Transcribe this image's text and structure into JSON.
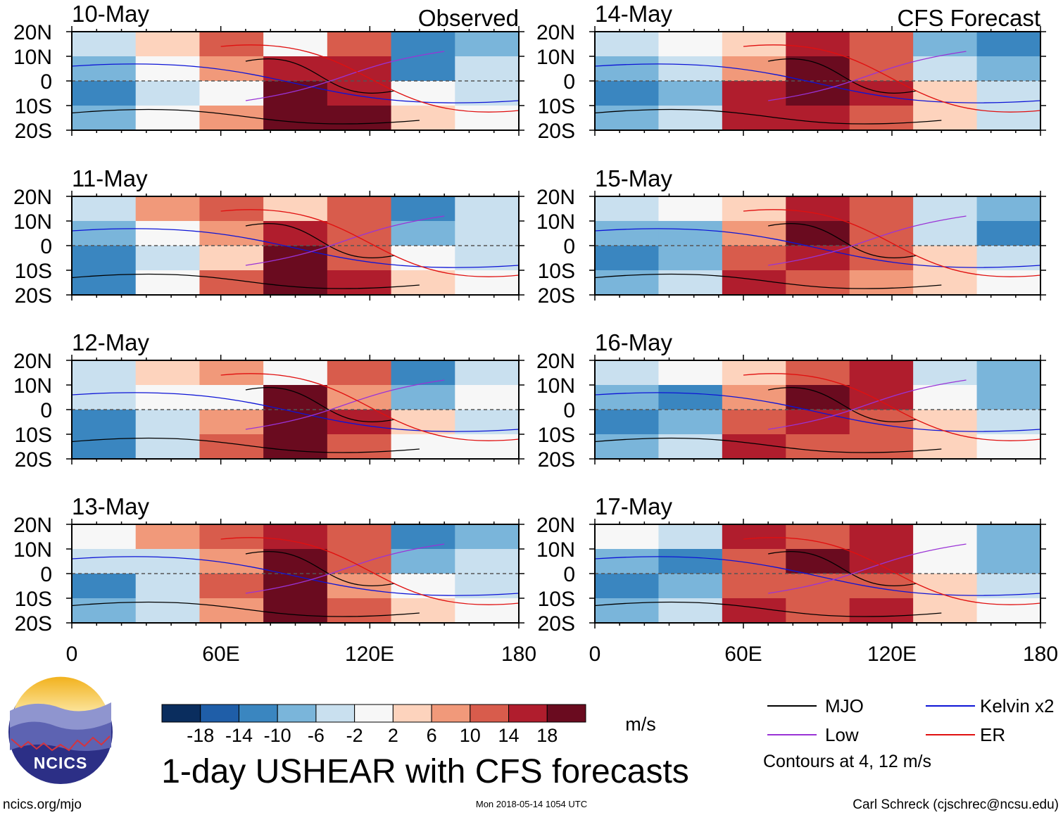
{
  "header": {
    "observed_label": "Observed",
    "forecast_label": "CFS Forecast"
  },
  "chart_data": {
    "type": "heatmap",
    "title": "1-day USHEAR with CFS forecasts",
    "x_ticks": [
      "0",
      "60E",
      "120E",
      "180"
    ],
    "x_tick_values": [
      0,
      60,
      120,
      180
    ],
    "y_ticks": [
      "20N",
      "10N",
      "0",
      "10S",
      "20S"
    ],
    "y_tick_values": [
      20,
      10,
      0,
      -10,
      -20
    ],
    "xlim": [
      0,
      180
    ],
    "ylim": [
      -20,
      20
    ],
    "panels": [
      {
        "date": "10-May",
        "type": "Observed",
        "field": [
          [
            -6,
            4,
            10,
            -2,
            10,
            -14,
            -10
          ],
          [
            -10,
            -2,
            6,
            14,
            14,
            -14,
            -6
          ],
          [
            -14,
            -6,
            -2,
            18,
            14,
            -2,
            -6
          ],
          [
            -10,
            -2,
            6,
            18,
            18,
            2,
            -2
          ]
        ]
      },
      {
        "date": "11-May",
        "type": "Observed",
        "field": [
          [
            -6,
            6,
            10,
            2,
            10,
            -14,
            -6
          ],
          [
            -10,
            -2,
            6,
            14,
            10,
            -10,
            -6
          ],
          [
            -14,
            -6,
            2,
            18,
            10,
            -2,
            -6
          ],
          [
            -14,
            -2,
            10,
            18,
            14,
            2,
            -2
          ]
        ]
      },
      {
        "date": "12-May",
        "type": "Observed",
        "field": [
          [
            -6,
            4,
            6,
            -2,
            10,
            -14,
            -6
          ],
          [
            -6,
            -2,
            -2,
            18,
            6,
            -10,
            -2
          ],
          [
            -14,
            -6,
            6,
            18,
            14,
            2,
            -6
          ],
          [
            -14,
            -6,
            10,
            18,
            10,
            -2,
            -2
          ]
        ]
      },
      {
        "date": "13-May",
        "type": "Observed",
        "field": [
          [
            -2,
            6,
            10,
            14,
            10,
            -14,
            -10
          ],
          [
            -6,
            -6,
            6,
            18,
            10,
            -10,
            -6
          ],
          [
            -14,
            -6,
            10,
            18,
            6,
            -2,
            -6
          ],
          [
            -10,
            -6,
            6,
            18,
            10,
            2,
            -2
          ]
        ]
      },
      {
        "date": "14-May",
        "type": "CFS Forecast",
        "field": [
          [
            -6,
            -2,
            2,
            14,
            10,
            -10,
            -14
          ],
          [
            -10,
            -6,
            6,
            18,
            10,
            -6,
            -10
          ],
          [
            -14,
            -10,
            14,
            18,
            14,
            2,
            -6
          ],
          [
            -10,
            -6,
            14,
            14,
            10,
            2,
            -6
          ]
        ]
      },
      {
        "date": "15-May",
        "type": "CFS Forecast",
        "field": [
          [
            -6,
            -2,
            2,
            14,
            10,
            -6,
            -10
          ],
          [
            -10,
            -10,
            6,
            18,
            10,
            -6,
            -14
          ],
          [
            -14,
            -10,
            10,
            14,
            10,
            2,
            -6
          ],
          [
            -10,
            -6,
            14,
            10,
            6,
            2,
            -2
          ]
        ]
      },
      {
        "date": "16-May",
        "type": "CFS Forecast",
        "field": [
          [
            -6,
            -2,
            2,
            10,
            14,
            -6,
            -10
          ],
          [
            -10,
            -14,
            6,
            18,
            14,
            -2,
            -10
          ],
          [
            -14,
            -10,
            10,
            14,
            10,
            2,
            -6
          ],
          [
            -10,
            -6,
            14,
            10,
            10,
            2,
            -2
          ]
        ]
      },
      {
        "date": "17-May",
        "type": "CFS Forecast",
        "field": [
          [
            -2,
            -6,
            14,
            10,
            14,
            -2,
            -10
          ],
          [
            -10,
            -14,
            10,
            18,
            14,
            -2,
            -10
          ],
          [
            -14,
            -10,
            10,
            10,
            10,
            2,
            -6
          ],
          [
            -10,
            -6,
            14,
            10,
            14,
            2,
            -2
          ]
        ]
      }
    ],
    "colorbar": {
      "unit": "m/s",
      "tick_labels": [
        "-18",
        "-14",
        "-10",
        "-6",
        "-2",
        "2",
        "6",
        "10",
        "14",
        "18"
      ],
      "colors": [
        "#0a2d5e",
        "#1f5ea8",
        "#3a86c0",
        "#7ab5da",
        "#c9e0ef",
        "#f7f7f7",
        "#fdd3bd",
        "#f1997a",
        "#d85c4c",
        "#b01d2d",
        "#6a0b1f"
      ],
      "bounds": [
        -18,
        -14,
        -10,
        -6,
        -2,
        2,
        6,
        10,
        14,
        18
      ]
    },
    "legend": [
      {
        "label": "MJO",
        "color": "#000000"
      },
      {
        "label": "Kelvin x2",
        "color": "#0d14d6"
      },
      {
        "label": "Low",
        "color": "#9a33d6"
      },
      {
        "label": "ER",
        "color": "#e01010"
      }
    ],
    "contours_note": "Contours at 4, 12 m/s"
  },
  "logo": {
    "text": "NCICS"
  },
  "footer": {
    "url": "ncics.org/mjo",
    "timestamp": "Mon 2018-05-14 1054 UTC",
    "author": "Carl Schreck (cjschrec@ncsu.edu)"
  }
}
